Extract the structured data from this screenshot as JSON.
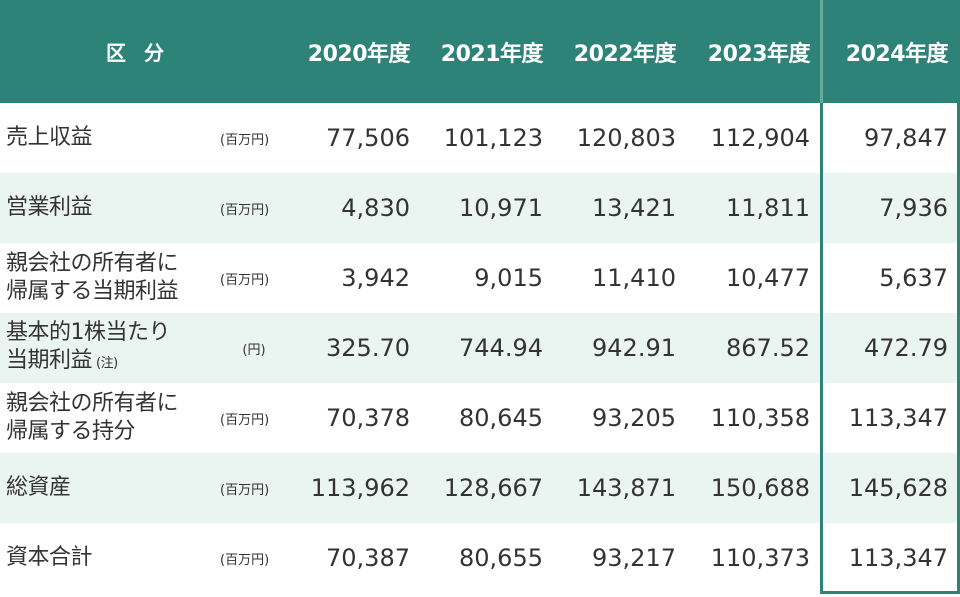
{
  "header": {
    "category": "区分",
    "years": [
      "2020年度",
      "2021年度",
      "2022年度",
      "2023年度",
      "2024年度"
    ]
  },
  "rows": [
    {
      "label_lines": [
        "売上収益"
      ],
      "unit": "(百万円)",
      "values": [
        "77,506",
        "101,123",
        "120,803",
        "112,904",
        "97,847"
      ]
    },
    {
      "label_lines": [
        "営業利益"
      ],
      "unit": "(百万円)",
      "values": [
        "4,830",
        "10,971",
        "13,421",
        "11,811",
        "7,936"
      ]
    },
    {
      "label_lines": [
        "親会社の所有者に",
        "帰属する当期利益"
      ],
      "unit": "(百万円)",
      "values": [
        "3,942",
        "9,015",
        "11,410",
        "10,477",
        "5,637"
      ]
    },
    {
      "label_lines": [
        "基本的1株当たり",
        "当期利益"
      ],
      "note": "(注)",
      "unit": "(円)",
      "values": [
        "325.70",
        "744.94",
        "942.91",
        "867.52",
        "472.79"
      ]
    },
    {
      "label_lines": [
        "親会社の所有者に",
        "帰属する持分"
      ],
      "unit": "(百万円)",
      "values": [
        "70,378",
        "80,645",
        "93,205",
        "110,358",
        "113,347"
      ]
    },
    {
      "label_lines": [
        "総資産"
      ],
      "unit": "(百万円)",
      "values": [
        "113,962",
        "128,667",
        "143,871",
        "150,688",
        "145,628"
      ]
    },
    {
      "label_lines": [
        "資本合計"
      ],
      "unit": "(百万円)",
      "values": [
        "70,387",
        "80,655",
        "93,217",
        "110,373",
        "113,347"
      ]
    }
  ],
  "colors": {
    "header_bg": "#2e8379",
    "alt_row_bg": "#eaf4f1",
    "highlight_border": "#2e8379"
  }
}
